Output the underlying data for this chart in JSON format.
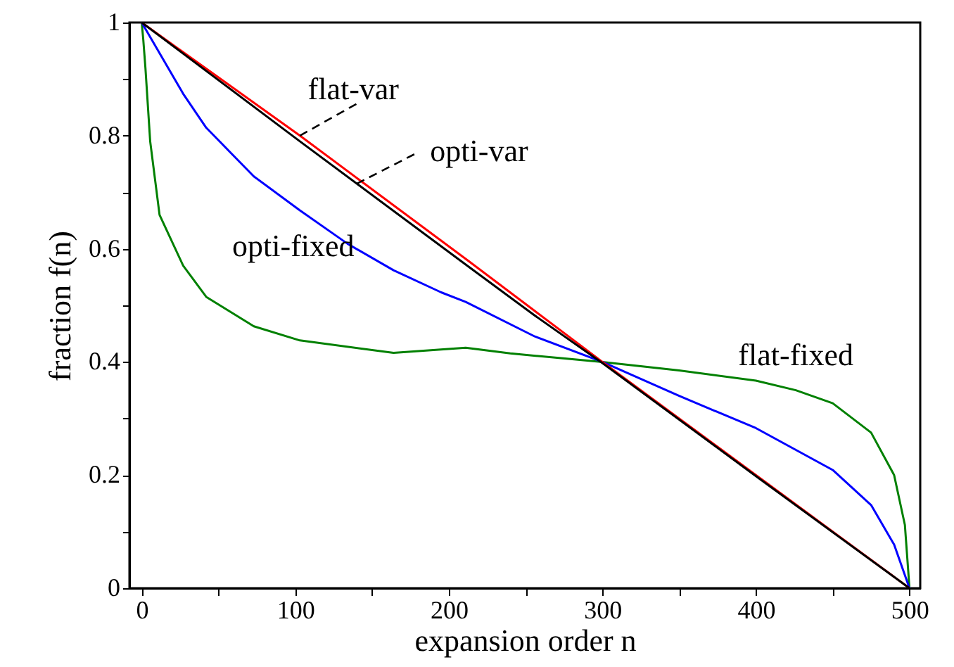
{
  "chart_data": {
    "type": "line",
    "xlabel": "expansion order  n",
    "ylabel": "fraction  f(n)",
    "xlim": [
      -8,
      507
    ],
    "ylim": [
      0,
      1
    ],
    "xticks": [
      0,
      {
        "value": 50,
        "label": null
      },
      100,
      {
        "value": 150,
        "label": null
      },
      200,
      {
        "value": 250,
        "label": null
      },
      300,
      {
        "value": 350,
        "label": null
      },
      400,
      {
        "value": 450,
        "label": null
      },
      500
    ],
    "yticks": [
      0,
      {
        "value": 0.1,
        "label": null
      },
      0.2,
      {
        "value": 0.3,
        "label": null
      },
      0.4,
      {
        "value": 0.5,
        "label": null
      },
      0.6,
      {
        "value": 0.7,
        "label": null
      },
      0.8,
      {
        "value": 0.9,
        "label": null
      },
      1
    ],
    "grid": false,
    "marker": "none",
    "line_style": "solid",
    "series": [
      {
        "color": "#008000",
        "x": [
          0,
          1,
          2.4,
          5.5,
          11.6,
          27,
          42,
          73,
          103,
          164,
          211,
          240,
          300,
          350,
          400,
          426,
          450,
          475,
          490,
          497,
          500
        ],
        "values": [
          1,
          0.97,
          0.92,
          0.79,
          0.66,
          0.57,
          0.515,
          0.463,
          0.438,
          0.416,
          0.425,
          0.415,
          0.4,
          0.385,
          0.367,
          0.35,
          0.327,
          0.275,
          0.2,
          0.112,
          0
        ]
      },
      {
        "color": "#0000ff",
        "x": [
          0,
          11.6,
          27,
          42,
          73,
          103,
          134,
          164,
          195,
          211,
          256,
          300,
          350,
          400,
          450,
          475,
          490,
          500
        ],
        "values": [
          1,
          0.946,
          0.874,
          0.814,
          0.728,
          0.668,
          0.609,
          0.562,
          0.523,
          0.506,
          0.445,
          0.4,
          0.34,
          0.283,
          0.209,
          0.147,
          0.077,
          0
        ]
      },
      {
        "color": "#ff0000",
        "x": [
          0,
          103,
          213,
          256,
          300,
          400,
          500
        ],
        "values": [
          1,
          0.8,
          0.578,
          0.49,
          0.4,
          0.2,
          0
        ]
      },
      {
        "color": "#000000",
        "x": [
          0,
          103,
          213,
          256,
          300,
          400,
          500
        ],
        "values": [
          1,
          0.79,
          0.568,
          0.482,
          0.398,
          0.198,
          0
        ]
      }
    ],
    "annotations": [
      {
        "text": "flat-var",
        "x": 103,
        "y": 0.8
      },
      {
        "text": "opti-var",
        "x": 140,
        "y": 0.715
      },
      {
        "text": "opti-fixed",
        "x": 106,
        "y": 0.664
      },
      {
        "text": "flat-fixed",
        "x": 426,
        "y": 0.35
      }
    ]
  }
}
